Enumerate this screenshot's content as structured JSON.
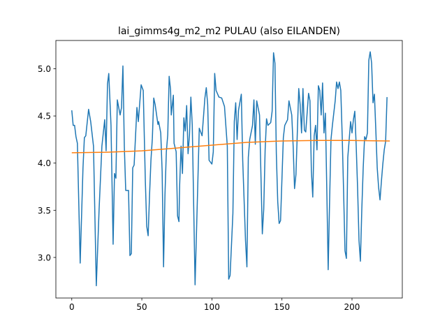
{
  "chart_data": {
    "type": "line",
    "title": "lai_gimms4g_m2_m2 PULAU (also EILANDEN)",
    "xlim": [
      -11.35,
      235.9
    ],
    "ylim": [
      2.57,
      5.3
    ],
    "xticks": [
      0,
      50,
      100,
      150,
      200
    ],
    "yticks": [
      {
        "value": 3.0,
        "label": "3.0"
      },
      {
        "value": 3.5,
        "label": "3.5"
      },
      {
        "value": 4.0,
        "label": "4.0"
      },
      {
        "value": 4.5,
        "label": "4.5"
      },
      {
        "value": 5.0,
        "label": "5.0"
      }
    ],
    "series": [
      {
        "color": "#1f77b4",
        "x": [
          0,
          1,
          2,
          3,
          4,
          6,
          8,
          9,
          10,
          12,
          13.5,
          15.5,
          17.5,
          19.5,
          21.5,
          23.5,
          24.5,
          25.5,
          26.4,
          28,
          29.5,
          30.5,
          31.5,
          32.5,
          34.5,
          35.5,
          36.5,
          37.5,
          38.5,
          40.5,
          41.5,
          42.5,
          43.5,
          44.5,
          46.5,
          47.5,
          49.5,
          51,
          52.5,
          53.5,
          54.5,
          55.5,
          56.5,
          57.5,
          58.5,
          59.5,
          61.5,
          62,
          63.5,
          64.5,
          65.5,
          66.5,
          67.5,
          68.5,
          69.5,
          70.5,
          71,
          72.5,
          73,
          74.5,
          75.5,
          76.5,
          77,
          78,
          79,
          80,
          81,
          82,
          83,
          84,
          85,
          86,
          88,
          90,
          91,
          93,
          95,
          96,
          97,
          98,
          100,
          101,
          102,
          103,
          105,
          107,
          109,
          111,
          112,
          113,
          115,
          116,
          117,
          118,
          119,
          121,
          122,
          124,
          125,
          126,
          127,
          129,
          130,
          131,
          132,
          134,
          136,
          137,
          138,
          139,
          140,
          142,
          143,
          144,
          145,
          146,
          147,
          148,
          149,
          151,
          152,
          154,
          155,
          157,
          158,
          159,
          160,
          162,
          163,
          164,
          165,
          166,
          167,
          169,
          170,
          171,
          172,
          173,
          174,
          175,
          176,
          177,
          178,
          179,
          180,
          181,
          182,
          183,
          184,
          185,
          186,
          188,
          189,
          190,
          191,
          192,
          193,
          194,
          195,
          196,
          197,
          198,
          199,
          200,
          201,
          202,
          203,
          204,
          205,
          206,
          207,
          208,
          209,
          210,
          211,
          212,
          213,
          214,
          215,
          216,
          217,
          218,
          219,
          220,
          221,
          222,
          223,
          224,
          225
        ],
        "values": [
          4.56,
          4.4,
          4.4,
          4.28,
          4.21,
          2.94,
          3.95,
          4.27,
          4.29,
          4.57,
          4.44,
          4.18,
          2.7,
          3.51,
          4.18,
          4.46,
          4.13,
          4.84,
          4.95,
          4.4,
          3.14,
          3.89,
          3.84,
          4.67,
          4.51,
          4.59,
          5.03,
          4.18,
          3.71,
          3.71,
          3.02,
          3.04,
          3.95,
          3.98,
          4.59,
          4.44,
          4.83,
          4.77,
          3.81,
          3.33,
          3.23,
          3.66,
          4.03,
          4.26,
          4.69,
          4.62,
          4.41,
          4.44,
          4.32,
          3.91,
          2.9,
          3.66,
          4.12,
          4.3,
          4.92,
          4.78,
          4.51,
          4.72,
          4.21,
          4.12,
          3.44,
          3.38,
          3.77,
          4.18,
          3.89,
          4.48,
          4.34,
          4.61,
          4.1,
          4.3,
          4.7,
          4.4,
          2.71,
          3.81,
          4.37,
          4.29,
          4.69,
          4.8,
          4.62,
          4.03,
          3.99,
          4.12,
          4.95,
          4.77,
          4.7,
          4.69,
          4.6,
          4.18,
          2.77,
          2.81,
          3.47,
          4.44,
          4.64,
          4.25,
          4.56,
          4.73,
          4.03,
          3.18,
          2.9,
          4.06,
          4.25,
          4.4,
          4.67,
          4.2,
          4.66,
          4.51,
          3.25,
          3.51,
          4.14,
          4.47,
          4.4,
          4.43,
          4.55,
          5.17,
          5.06,
          4.1,
          3.59,
          3.36,
          3.39,
          4.27,
          4.4,
          4.46,
          4.66,
          4.51,
          4.18,
          3.73,
          3.88,
          4.79,
          4.62,
          4.32,
          4.79,
          4.35,
          4.33,
          4.74,
          4.66,
          3.92,
          3.64,
          4.29,
          4.4,
          4.14,
          4.82,
          4.77,
          4.51,
          4.85,
          4.32,
          4.53,
          3.73,
          2.87,
          3.59,
          4.25,
          4.4,
          4.66,
          4.86,
          4.79,
          4.86,
          4.77,
          4.29,
          3.7,
          3.07,
          2.99,
          4.06,
          4.25,
          4.44,
          4.32,
          4.46,
          4.55,
          4.18,
          3.73,
          3.18,
          2.96,
          3.51,
          3.95,
          4.28,
          4.25,
          4.32,
          5.09,
          5.18,
          5.06,
          4.64,
          4.73,
          4.35,
          3.95,
          3.74,
          3.61,
          3.81,
          3.99,
          4.14,
          4.23,
          4.7
        ]
      },
      {
        "color": "#ff7f0e",
        "x": [
          0,
          25,
          50,
          75,
          100,
          125,
          150,
          175,
          200,
          227
        ],
        "values": [
          4.11,
          4.115,
          4.13,
          4.16,
          4.19,
          4.22,
          4.235,
          4.24,
          4.24,
          4.235
        ]
      }
    ]
  }
}
